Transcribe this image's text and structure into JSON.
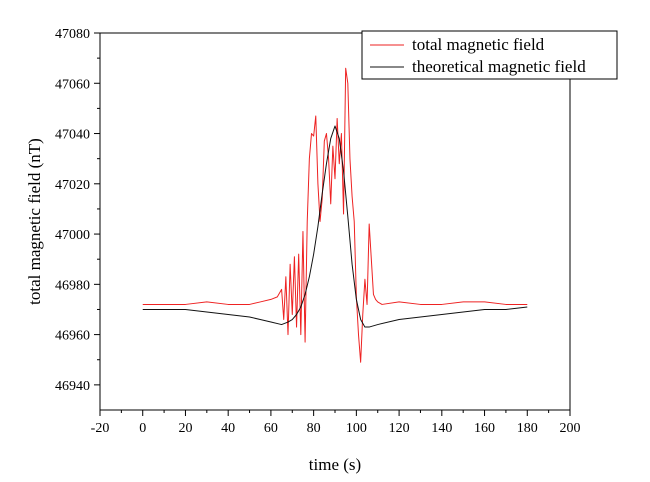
{
  "chart_data": {
    "type": "line",
    "title": "",
    "xlabel": "time (s)",
    "ylabel": "total magnetic field (nT)",
    "xlim": [
      -20,
      200
    ],
    "ylim": [
      46930,
      47080
    ],
    "xticks": [
      -20,
      0,
      20,
      40,
      60,
      80,
      100,
      120,
      140,
      160,
      180,
      200
    ],
    "yticks": [
      46940,
      46960,
      46980,
      47000,
      47020,
      47040,
      47060,
      47080
    ],
    "grid": false,
    "legend_position": "top-right",
    "series": [
      {
        "name": "total magnetic field",
        "color": "#ee2222",
        "x": [
          0,
          10,
          20,
          30,
          40,
          50,
          55,
          60,
          63,
          65,
          66,
          67,
          68,
          69,
          70,
          71,
          72,
          73,
          74,
          75,
          76,
          77,
          78,
          79,
          80,
          81,
          82,
          83,
          84,
          85,
          86,
          87,
          88,
          89,
          90,
          91,
          92,
          93,
          94,
          95,
          96,
          97,
          98,
          99,
          100,
          101,
          102,
          103,
          104,
          105,
          106,
          107,
          108,
          109,
          110,
          112,
          120,
          130,
          140,
          150,
          160,
          170,
          180
        ],
        "values": [
          46972,
          46972,
          46972,
          46973,
          46972,
          46972,
          46973,
          46974,
          46975,
          46978,
          46966,
          46983,
          46960,
          46988,
          46968,
          46991,
          46963,
          46992,
          46960,
          47001,
          46957,
          47005,
          47030,
          47040,
          47039,
          47047,
          47020,
          47005,
          47014,
          47037,
          47040,
          47030,
          47012,
          47035,
          47022,
          47046,
          47028,
          47040,
          47008,
          47066,
          47060,
          47030,
          47015,
          47005,
          46975,
          46960,
          46949,
          46968,
          46982,
          46972,
          47004,
          46990,
          46976,
          46974,
          46973,
          46972,
          46973,
          46972,
          46972,
          46973,
          46973,
          46972,
          46972
        ]
      },
      {
        "name": "theoretical magnetic field",
        "color": "#111111",
        "x": [
          0,
          10,
          20,
          30,
          40,
          50,
          55,
          60,
          65,
          68,
          70,
          72,
          74,
          76,
          78,
          80,
          82,
          84,
          86,
          88,
          90,
          92,
          94,
          96,
          98,
          100,
          102,
          104,
          106,
          110,
          120,
          130,
          140,
          150,
          160,
          170,
          180
        ],
        "values": [
          46970,
          46970,
          46970,
          46969,
          46968,
          46967,
          46966,
          46965,
          46964,
          46965,
          46966,
          46968,
          46971,
          46976,
          46983,
          46992,
          47003,
          47016,
          47028,
          47038,
          47043,
          47038,
          47025,
          47007,
          46988,
          46974,
          46966,
          46963,
          46963,
          46964,
          46966,
          46967,
          46968,
          46969,
          46970,
          46970,
          46971
        ]
      }
    ]
  }
}
